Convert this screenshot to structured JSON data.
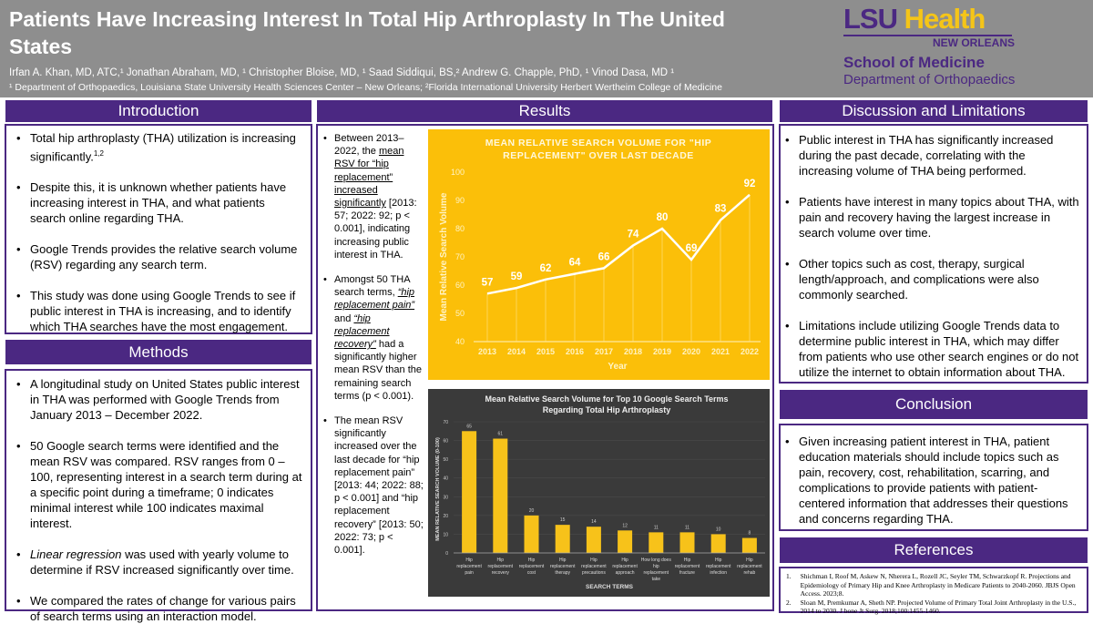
{
  "header": {
    "title": "Patients Have Increasing Interest In Total Hip Arthroplasty In The United States",
    "authors": "Irfan A. Khan, MD, ATC,¹ Jonathan Abraham, MD, ¹ Christopher Bloise, MD, ¹ Saad Siddiqui, BS,² Andrew G. Chapple, PhD, ¹ Vinod Dasa, MD ¹",
    "affiliations": "¹ Department of Orthopaedics, Louisiana State University Health Sciences Center – New Orleans; ²Florida International University Herbert Wertheim College of Medicine",
    "logo": {
      "lsu": "LSU",
      "health": "Health",
      "city": "NEW ORLEANS",
      "school": "School of Medicine",
      "department": "Department of Orthopaedics"
    }
  },
  "introduction": {
    "title": "Introduction",
    "bullets": [
      {
        "text": "Total hip arthroplasty (THA) utilization is increasing significantly.",
        "sup": "1,2"
      },
      {
        "text": "Despite this, it is unknown whether patients have increasing interest in THA, and what patients search online regarding THA."
      },
      {
        "text": "Google Trends provides the relative search volume (RSV) regarding any search term."
      },
      {
        "text": "This study was done using Google Trends to see if public interest in THA is increasing, and to identify which THA searches have the most engagement."
      }
    ]
  },
  "methods": {
    "title": "Methods",
    "bullets": [
      "A longitudinal study on United States public interest in THA was performed with Google Trends from January 2013 – December 2022.",
      "50 Google search terms were identified and the mean RSV was compared. RSV ranges from 0 – 100, representing interest in a search term during at a specific point during a timeframe; 0 indicates minimal interest while 100 indicates maximal interest.",
      {
        "em": "Linear regression",
        "text": " was used with yearly volume to determine if RSV increased significantly over time."
      },
      "We compared the rates of change for various pairs of search terms using an interaction model."
    ]
  },
  "results": {
    "title": "Results",
    "b1": {
      "pre": "Between 2013–2022, the ",
      "u": "mean RSV for “hip replacement” increased significantly",
      "post": " [2013: 57; 2022: 92; p < 0.001], indicating increasing public interest in THA."
    },
    "b2": {
      "pre": "Amongst 50 THA search terms, ",
      "u1": "“hip replacement pain”",
      "mid": " and ",
      "u2": "“hip replacement recovery”",
      "post": " had a significantly higher mean RSV than the remaining search terms (p < 0.001)."
    },
    "b3": "The mean RSV significantly increased over the last decade for “hip replacement pain” [2013: 44; 2022: 88; p < 0.001] and “hip replacement recovery” [2013: 50; 2022: 73; p < 0.001]."
  },
  "discussion": {
    "title": "Discussion and Limitations",
    "bullets": [
      "Public interest in THA has significantly increased during the past decade, correlating with the increasing volume of THA being performed.",
      "Patients have interest in many topics about THA, with pain and recovery having the largest increase in search volume over time.",
      "Other topics such as cost, therapy, surgical length/approach, and complications were also commonly searched.",
      "Limitations include utilizing Google Trends data to determine public interest in THA, which may differ from patients who use other search engines or do not utilize the internet to obtain information about THA."
    ]
  },
  "conclusion": {
    "title": "Conclusion",
    "bullets": [
      "Given increasing patient interest in THA, patient education materials should include topics such as pain, recovery, cost, rehabilitation, scarring, and complications to provide patients with patient-centered information that addresses their questions and concerns regarding THA."
    ]
  },
  "references": {
    "title": "References",
    "items": [
      {
        "n": "1.",
        "text": "Shichman I, Roof M, Askew N, Nherera L, Rozell JC, Seyler TM, Schwarzkopf R. Projections and Epidemiology of Primary Hip and Knee Arthroplasty in Medicare Patients to 2040-2060. JBJS Open Access. 2023;8."
      },
      {
        "n": "2.",
        "text": "Sloan M, Premkumar A, Sheth NP. Projected Volume of Primary Total Joint Arthroplasty in the U.S., 2014 to 2030. J bone Jt Surg. 2018;100:1455-1460."
      }
    ]
  },
  "chart_data": [
    {
      "type": "line",
      "title": "MEAN RELATIVE SEARCH VOLUME FOR \"HIP REPLACEMENT\" OVER LAST DECADE",
      "xlabel": "Year",
      "ylabel": "Mean Relative Search Volume",
      "x": [
        "2013",
        "2014",
        "2015",
        "2016",
        "2017",
        "2018",
        "2019",
        "2020",
        "2021",
        "2022"
      ],
      "values": [
        57,
        59,
        62,
        64,
        66,
        74,
        80,
        69,
        83,
        92
      ],
      "ylim": [
        40,
        100
      ],
      "yticks": [
        40,
        50,
        60,
        70,
        80,
        90,
        100
      ],
      "bg": "#fbbf09",
      "color": "#ffffff"
    },
    {
      "type": "bar",
      "title": "Mean Relative Search Volume for Top 10 Google Search Terms",
      "title2": "Regarding Total Hip Arthroplasty",
      "xlabel": "SEARCH TERMS",
      "ylabel": "MEAN RELATIVE SEARCH VOLUME (0-100)",
      "categories": [
        [
          "Hip",
          "replacement",
          "pain"
        ],
        [
          "Hip",
          "replacement",
          "recovery"
        ],
        [
          "Hip",
          "replacement",
          "cost"
        ],
        [
          "Hip",
          "replacement",
          "therapy"
        ],
        [
          "Hip",
          "replacement",
          "precautions"
        ],
        [
          "Hip",
          "replacement",
          "approach"
        ],
        [
          "How long does",
          "hip",
          "replacement",
          "take"
        ],
        [
          "Hip",
          "replacement",
          "fracture"
        ],
        [
          "Hip",
          "replacement",
          "infection"
        ],
        [
          "Hip",
          "replacement",
          "rehab"
        ]
      ],
      "values": [
        65,
        61,
        20,
        15,
        14,
        12,
        11,
        11,
        10,
        8
      ],
      "ylim": [
        0,
        70
      ],
      "yticks": [
        0,
        10,
        20,
        30,
        40,
        50,
        60,
        70
      ],
      "bg": "#3a3a3a",
      "color": "#f7c21a"
    }
  ],
  "colors": {
    "purple": "#4b2882",
    "gold": "#f5c518",
    "header_gray": "#8e8e8e"
  }
}
